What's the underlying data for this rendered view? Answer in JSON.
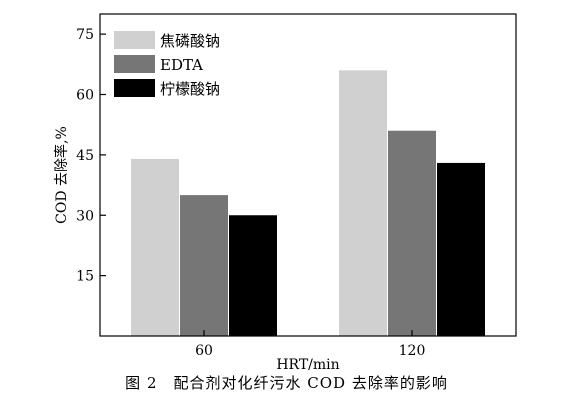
{
  "chart_data": {
    "type": "bar",
    "categories": [
      "60",
      "120"
    ],
    "series": [
      {
        "name": "焦磷酸钠",
        "values": [
          44,
          66
        ],
        "color": "#d0d0d0"
      },
      {
        "name": "EDTA",
        "values": [
          35,
          51
        ],
        "color": "#767676"
      },
      {
        "name": "柠檬酸钠",
        "values": [
          30,
          43
        ],
        "color": "#000000"
      }
    ],
    "xlabel": "HRT/min",
    "ylabel": "COD 去除率,%",
    "ylim": [
      0,
      80
    ],
    "yticks": [
      15,
      30,
      45,
      60,
      75
    ],
    "legend_position": "top-left",
    "grid": false
  },
  "caption": "图 2　配合剂对化纤污水 COD 去除率的影响"
}
